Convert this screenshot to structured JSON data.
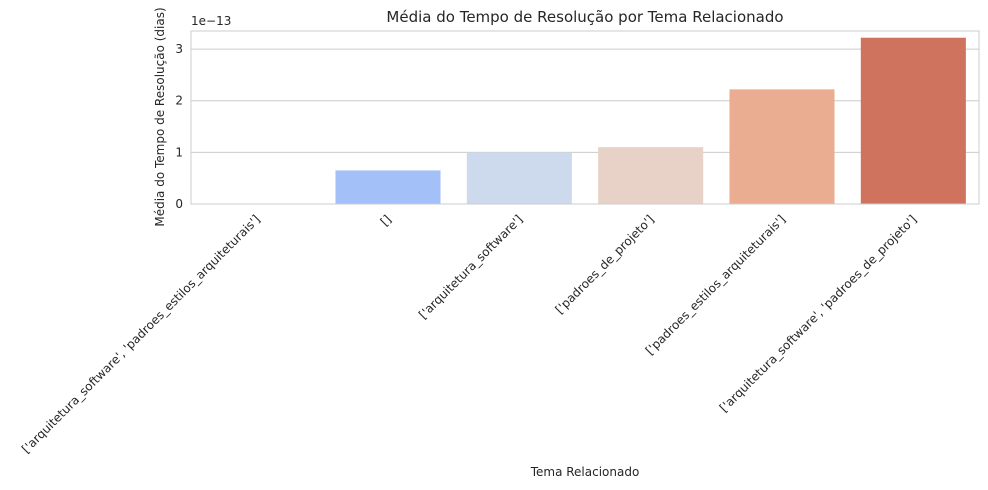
{
  "chart_data": {
    "type": "bar",
    "title": "Média do Tempo de Resolução por Tema Relacionado",
    "xlabel": "Tema Relacionado",
    "ylabel": "Média do Tempo de Resolução (dias)",
    "y_offset_label": "1e−13",
    "ylim": [
      0,
      3.35
    ],
    "yticks": [
      0,
      1,
      2,
      3
    ],
    "grid": true,
    "categories": [
      "['arquitetura_software', 'padroes_estilos_arquiteturais']",
      "[]",
      "['arquitetura_software']",
      "['padroes_de_projeto']",
      "['padroes_estilos_arquiteturais']",
      "['arquitetura_software', 'padroes_de_projeto']"
    ],
    "values": [
      0,
      0.65,
      1.0,
      1.1,
      2.22,
      3.22
    ],
    "colors": [
      "#6f92f3",
      "#a3c0f8",
      "#cdd9ec",
      "#e8d2c7",
      "#eaad92",
      "#d0735e"
    ]
  }
}
